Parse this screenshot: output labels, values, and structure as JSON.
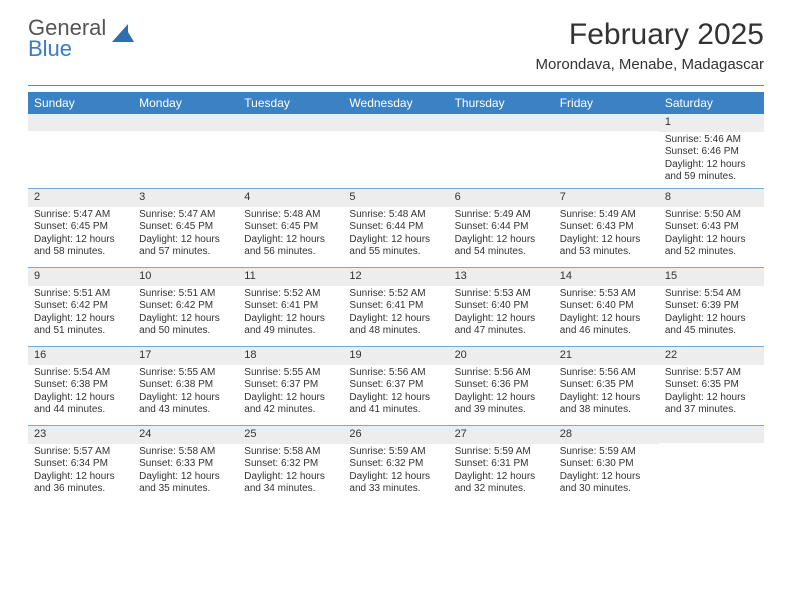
{
  "logo": {
    "line1": "General",
    "line2": "Blue"
  },
  "header": {
    "title": "February 2025",
    "location": "Morondava, Menabe, Madagascar"
  },
  "colors": {
    "header_bar": "#3b82c4",
    "divider": "#4a8cc9",
    "week_sep": "#7aa8d0",
    "daynum_bg": "#ededed",
    "logo_gray": "#555555",
    "logo_blue": "#3a7cc4",
    "text": "#333333",
    "bg": "#ffffff"
  },
  "day_names": [
    "Sunday",
    "Monday",
    "Tuesday",
    "Wednesday",
    "Thursday",
    "Friday",
    "Saturday"
  ],
  "weeks": [
    [
      null,
      null,
      null,
      null,
      null,
      null,
      {
        "n": "1",
        "sr": "Sunrise: 5:46 AM",
        "ss": "Sunset: 6:46 PM",
        "dl": "Daylight: 12 hours and 59 minutes."
      }
    ],
    [
      {
        "n": "2",
        "sr": "Sunrise: 5:47 AM",
        "ss": "Sunset: 6:45 PM",
        "dl": "Daylight: 12 hours and 58 minutes."
      },
      {
        "n": "3",
        "sr": "Sunrise: 5:47 AM",
        "ss": "Sunset: 6:45 PM",
        "dl": "Daylight: 12 hours and 57 minutes."
      },
      {
        "n": "4",
        "sr": "Sunrise: 5:48 AM",
        "ss": "Sunset: 6:45 PM",
        "dl": "Daylight: 12 hours and 56 minutes."
      },
      {
        "n": "5",
        "sr": "Sunrise: 5:48 AM",
        "ss": "Sunset: 6:44 PM",
        "dl": "Daylight: 12 hours and 55 minutes."
      },
      {
        "n": "6",
        "sr": "Sunrise: 5:49 AM",
        "ss": "Sunset: 6:44 PM",
        "dl": "Daylight: 12 hours and 54 minutes."
      },
      {
        "n": "7",
        "sr": "Sunrise: 5:49 AM",
        "ss": "Sunset: 6:43 PM",
        "dl": "Daylight: 12 hours and 53 minutes."
      },
      {
        "n": "8",
        "sr": "Sunrise: 5:50 AM",
        "ss": "Sunset: 6:43 PM",
        "dl": "Daylight: 12 hours and 52 minutes."
      }
    ],
    [
      {
        "n": "9",
        "sr": "Sunrise: 5:51 AM",
        "ss": "Sunset: 6:42 PM",
        "dl": "Daylight: 12 hours and 51 minutes."
      },
      {
        "n": "10",
        "sr": "Sunrise: 5:51 AM",
        "ss": "Sunset: 6:42 PM",
        "dl": "Daylight: 12 hours and 50 minutes."
      },
      {
        "n": "11",
        "sr": "Sunrise: 5:52 AM",
        "ss": "Sunset: 6:41 PM",
        "dl": "Daylight: 12 hours and 49 minutes."
      },
      {
        "n": "12",
        "sr": "Sunrise: 5:52 AM",
        "ss": "Sunset: 6:41 PM",
        "dl": "Daylight: 12 hours and 48 minutes."
      },
      {
        "n": "13",
        "sr": "Sunrise: 5:53 AM",
        "ss": "Sunset: 6:40 PM",
        "dl": "Daylight: 12 hours and 47 minutes."
      },
      {
        "n": "14",
        "sr": "Sunrise: 5:53 AM",
        "ss": "Sunset: 6:40 PM",
        "dl": "Daylight: 12 hours and 46 minutes."
      },
      {
        "n": "15",
        "sr": "Sunrise: 5:54 AM",
        "ss": "Sunset: 6:39 PM",
        "dl": "Daylight: 12 hours and 45 minutes."
      }
    ],
    [
      {
        "n": "16",
        "sr": "Sunrise: 5:54 AM",
        "ss": "Sunset: 6:38 PM",
        "dl": "Daylight: 12 hours and 44 minutes."
      },
      {
        "n": "17",
        "sr": "Sunrise: 5:55 AM",
        "ss": "Sunset: 6:38 PM",
        "dl": "Daylight: 12 hours and 43 minutes."
      },
      {
        "n": "18",
        "sr": "Sunrise: 5:55 AM",
        "ss": "Sunset: 6:37 PM",
        "dl": "Daylight: 12 hours and 42 minutes."
      },
      {
        "n": "19",
        "sr": "Sunrise: 5:56 AM",
        "ss": "Sunset: 6:37 PM",
        "dl": "Daylight: 12 hours and 41 minutes."
      },
      {
        "n": "20",
        "sr": "Sunrise: 5:56 AM",
        "ss": "Sunset: 6:36 PM",
        "dl": "Daylight: 12 hours and 39 minutes."
      },
      {
        "n": "21",
        "sr": "Sunrise: 5:56 AM",
        "ss": "Sunset: 6:35 PM",
        "dl": "Daylight: 12 hours and 38 minutes."
      },
      {
        "n": "22",
        "sr": "Sunrise: 5:57 AM",
        "ss": "Sunset: 6:35 PM",
        "dl": "Daylight: 12 hours and 37 minutes."
      }
    ],
    [
      {
        "n": "23",
        "sr": "Sunrise: 5:57 AM",
        "ss": "Sunset: 6:34 PM",
        "dl": "Daylight: 12 hours and 36 minutes."
      },
      {
        "n": "24",
        "sr": "Sunrise: 5:58 AM",
        "ss": "Sunset: 6:33 PM",
        "dl": "Daylight: 12 hours and 35 minutes."
      },
      {
        "n": "25",
        "sr": "Sunrise: 5:58 AM",
        "ss": "Sunset: 6:32 PM",
        "dl": "Daylight: 12 hours and 34 minutes."
      },
      {
        "n": "26",
        "sr": "Sunrise: 5:59 AM",
        "ss": "Sunset: 6:32 PM",
        "dl": "Daylight: 12 hours and 33 minutes."
      },
      {
        "n": "27",
        "sr": "Sunrise: 5:59 AM",
        "ss": "Sunset: 6:31 PM",
        "dl": "Daylight: 12 hours and 32 minutes."
      },
      {
        "n": "28",
        "sr": "Sunrise: 5:59 AM",
        "ss": "Sunset: 6:30 PM",
        "dl": "Daylight: 12 hours and 30 minutes."
      },
      null
    ]
  ]
}
